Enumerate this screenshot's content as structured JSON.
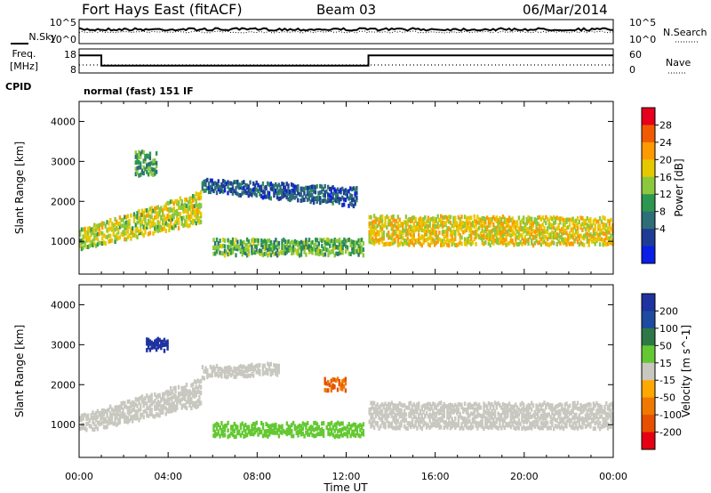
{
  "header": {
    "station": "Fort Hays East (fitACF)",
    "beam": "Beam 03",
    "date": "06/Mar/2014"
  },
  "noise_panel": {
    "left_label": "N.Sky",
    "right_label": "N.Search",
    "left_ticks": [
      "10^5",
      "10^0"
    ],
    "right_ticks": [
      "10^5",
      "10^0"
    ]
  },
  "freq_panel": {
    "left_label_1": "Freq.",
    "left_label_2": "[MHz]",
    "right_label": "Nave",
    "left_ticks": [
      "18",
      "8"
    ],
    "right_ticks": [
      "60",
      "0"
    ]
  },
  "cpid": {
    "label": "CPID",
    "mode": "normal (fast) 151 IF"
  },
  "power_colorbar": {
    "label": "Power [dB]",
    "ticks": [
      "28",
      "24",
      "20",
      "16",
      "12",
      "8",
      "4"
    ],
    "colors": [
      "#e6001e",
      "#f05a00",
      "#ff9900",
      "#e6c800",
      "#8cc83c",
      "#2d9650",
      "#2d6e78",
      "#1e3c96",
      "#0a1ee6"
    ]
  },
  "velocity_colorbar": {
    "label": "Velocity [m s^-1]",
    "ticks": [
      "200",
      "100",
      "50",
      "15",
      "-15",
      "-50",
      "-100",
      "-200"
    ],
    "colors": [
      "#1e32a0",
      "#1e4ba0",
      "#2d7846",
      "#64c832",
      "#c8c8c0",
      "#ffa800",
      "#f07800",
      "#e65000",
      "#e60014"
    ]
  },
  "x_axis": {
    "label": "Time UT",
    "ticks": [
      "00:00",
      "04:00",
      "08:00",
      "12:00",
      "16:00",
      "20:00",
      "00:00"
    ]
  },
  "chart_data": [
    {
      "type": "heatmap",
      "title": "Power",
      "xlabel": "Time UT",
      "ylabel": "Slant Range [km]",
      "y_ticks": [
        "4000",
        "3000",
        "2000",
        "1000"
      ],
      "xlim": [
        0,
        24
      ],
      "ylim": [
        180,
        4500
      ],
      "colorbar_range": [
        0,
        32
      ],
      "regions": [
        {
          "t_start": 0.0,
          "t_end": 5.5,
          "r_start_low": 850,
          "r_start_high": 1350,
          "r_end_low": 1500,
          "r_end_high": 2300,
          "value": 18
        },
        {
          "t_start": 5.5,
          "t_end": 12.5,
          "r_start_low": 2300,
          "r_start_high": 2600,
          "r_end_low": 1900,
          "r_end_high": 2400,
          "value": 6
        },
        {
          "t_start": 6.0,
          "t_end": 12.8,
          "r_start_low": 700,
          "r_start_high": 1100,
          "r_end_low": 700,
          "r_end_high": 1100,
          "value": 14
        },
        {
          "t_start": 13.0,
          "t_end": 24.0,
          "r_start_low": 950,
          "r_start_high": 1700,
          "r_end_low": 950,
          "r_end_high": 1650,
          "value": 20
        },
        {
          "t_start": 2.5,
          "t_end": 3.5,
          "r_start_low": 2700,
          "r_start_high": 3300,
          "r_end_low": 2700,
          "r_end_high": 3300,
          "value": 12
        }
      ]
    },
    {
      "type": "heatmap",
      "title": "Velocity",
      "xlabel": "Time UT",
      "ylabel": "Slant Range [km]",
      "y_ticks": [
        "4000",
        "3000",
        "2000",
        "1000"
      ],
      "xlim": [
        0,
        24
      ],
      "ylim": [
        180,
        4500
      ],
      "colorbar_range": [
        -250,
        250
      ],
      "regions": [
        {
          "t_start": 0.0,
          "t_end": 5.5,
          "r_start_low": 850,
          "r_start_high": 1300,
          "r_end_low": 1500,
          "r_end_high": 2200,
          "value": 0
        },
        {
          "t_start": 5.5,
          "t_end": 9.0,
          "r_start_low": 2200,
          "r_start_high": 2500,
          "r_end_low": 2300,
          "r_end_high": 2600,
          "value": 0
        },
        {
          "t_start": 6.0,
          "t_end": 12.8,
          "r_start_low": 750,
          "r_start_high": 1100,
          "r_end_low": 750,
          "r_end_high": 1100,
          "value": 30
        },
        {
          "t_start": 13.0,
          "t_end": 24.0,
          "r_start_low": 950,
          "r_start_high": 1600,
          "r_end_low": 950,
          "r_end_high": 1600,
          "value": 0
        },
        {
          "t_start": 3.0,
          "t_end": 4.0,
          "r_start_low": 2900,
          "r_start_high": 3200,
          "r_end_low": 2900,
          "r_end_high": 3200,
          "value": 220
        },
        {
          "t_start": 11.0,
          "t_end": 12.0,
          "r_start_low": 1900,
          "r_start_high": 2200,
          "r_end_low": 1900,
          "r_end_high": 2200,
          "value": -100
        }
      ]
    }
  ]
}
